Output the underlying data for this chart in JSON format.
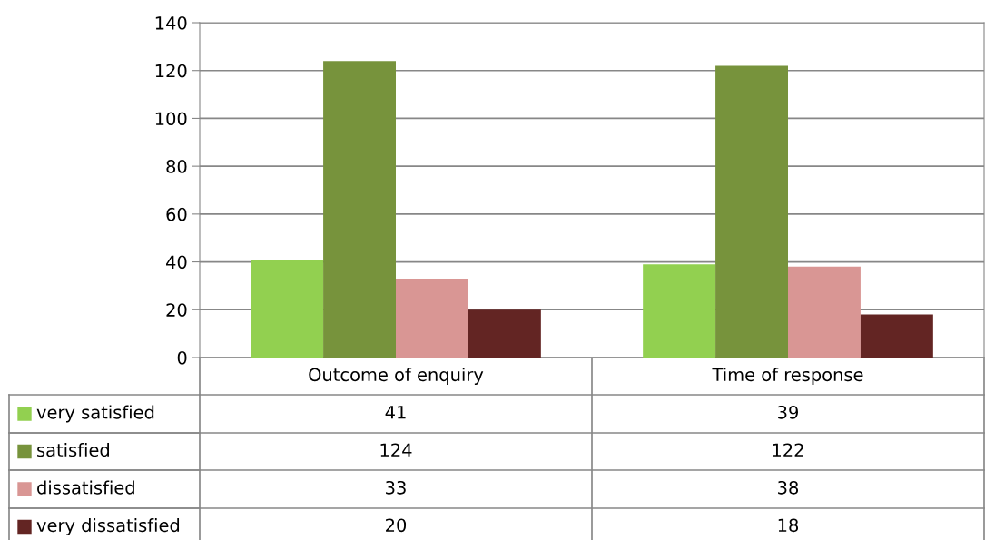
{
  "chart_data": {
    "type": "bar",
    "categories": [
      "Outcome of enquiry",
      "Time of response"
    ],
    "series": [
      {
        "name": "very satisfied",
        "color": "#92d050",
        "values": [
          41,
          39
        ]
      },
      {
        "name": "satisfied",
        "color": "#77933c",
        "values": [
          124,
          122
        ]
      },
      {
        "name": "dissatisfied",
        "color": "#d99694",
        "values": [
          33,
          38
        ]
      },
      {
        "name": "very dissatisfied",
        "color": "#632523",
        "values": [
          20,
          18
        ]
      }
    ],
    "ylim": [
      0,
      140
    ],
    "yticks": [
      0,
      20,
      40,
      60,
      80,
      100,
      120,
      140
    ],
    "grid": "y",
    "legend": "bottom",
    "data_labels": true
  }
}
